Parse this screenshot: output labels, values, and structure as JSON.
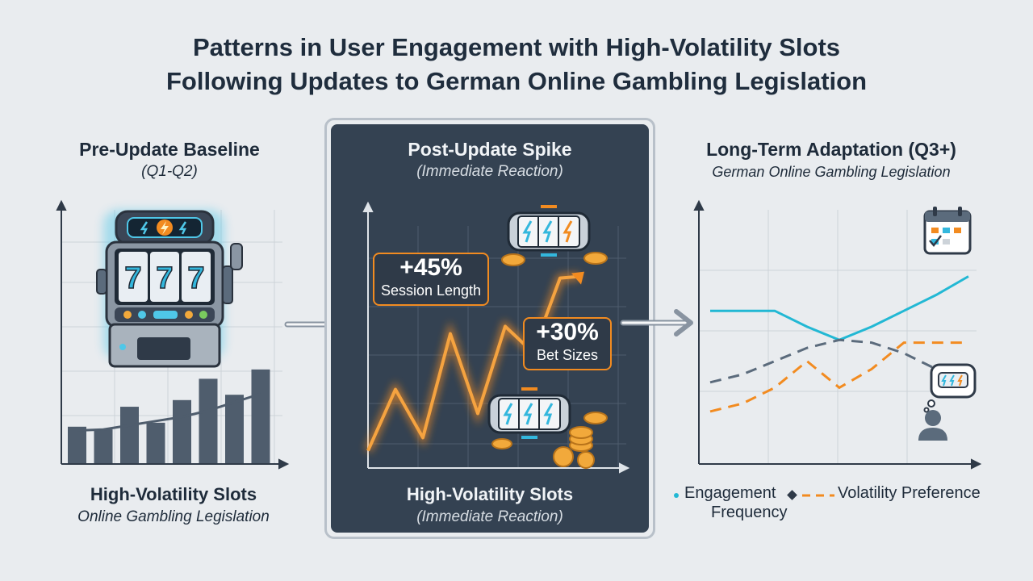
{
  "title": {
    "line1": "Patterns in User Engagement with High-Volatility Slots",
    "line2": "Following Updates to German Online Gambling Legislation"
  },
  "left_panel": {
    "title": "Pre-Update Baseline",
    "subtitle": "(Q1-Q2)",
    "footer_title": "High-Volatility Slots",
    "footer_sub": "Online Gambling Legislation",
    "reel_symbols": [
      "7",
      "7",
      "7"
    ]
  },
  "center_panel": {
    "title": "Post-Update Spike",
    "subtitle": "(Immediate Reaction)",
    "footer_title": "High-Volatility Slots",
    "footer_sub": "(Immediate Reaction)",
    "callout_session": {
      "value": "+45%",
      "label": "Session Length"
    },
    "callout_bets": {
      "value": "+30%",
      "label": "Bet Sizes"
    }
  },
  "right_panel": {
    "title": "Long-Term Adaptation (Q3+)",
    "subtitle": "German Online Gambling Legislation"
  },
  "legend": {
    "engagement": "Engagement",
    "frequency": "Frequency",
    "volatility": "Volatility Preference"
  },
  "colors": {
    "navy": "#1f2d3d",
    "panel_dark": "#344252",
    "orange": "#f28b20",
    "teal": "#22b8d4",
    "slate": "#5b6b7c",
    "bar": "#4f5d6d",
    "gold": "#f2a93b"
  },
  "icons": [
    "slot-machine-icon",
    "arrow-right-icon",
    "calendar-icon",
    "coin-icon",
    "slot-reel-icon",
    "user-thought-icon"
  ],
  "chart_data": [
    {
      "type": "bar",
      "title": "Pre-Update Baseline",
      "categories": [
        "1",
        "2",
        "3",
        "4",
        "5",
        "6",
        "7",
        "8"
      ],
      "values": [
        28,
        26,
        43,
        31,
        48,
        64,
        52,
        71
      ],
      "series": [
        {
          "type": "line",
          "values": [
            55,
            56,
            60,
            64,
            68,
            74,
            82,
            90
          ]
        }
      ],
      "ylim": [
        0,
        100
      ]
    },
    {
      "type": "line",
      "title": "Post-Update Spike",
      "x": [
        0,
        1,
        2,
        3,
        4,
        5,
        6,
        7,
        8
      ],
      "values": [
        5,
        38,
        12,
        68,
        25,
        72,
        58,
        98,
        80
      ],
      "annotations": [
        "+45% Session Length",
        "+30% Bet Sizes"
      ]
    },
    {
      "type": "line",
      "title": "Long-Term Adaptation (Q3+)",
      "x": [
        0,
        1,
        2,
        3,
        4,
        5,
        6,
        7,
        8
      ],
      "series": [
        {
          "name": "Engagement",
          "color": "#22b8d4",
          "values": [
            70,
            70,
            70,
            64,
            59,
            64,
            70,
            76,
            83
          ]
        },
        {
          "name": "Frequency",
          "color": "#5b6b7c",
          "values": [
            43,
            46,
            51,
            56,
            59,
            58,
            54,
            48,
            44
          ]
        },
        {
          "name": "Volatility Preference",
          "color": "#f28b20",
          "values": [
            32,
            35,
            41,
            51,
            41,
            48,
            58,
            58,
            58
          ]
        }
      ],
      "ylim": [
        0,
        100
      ]
    }
  ]
}
